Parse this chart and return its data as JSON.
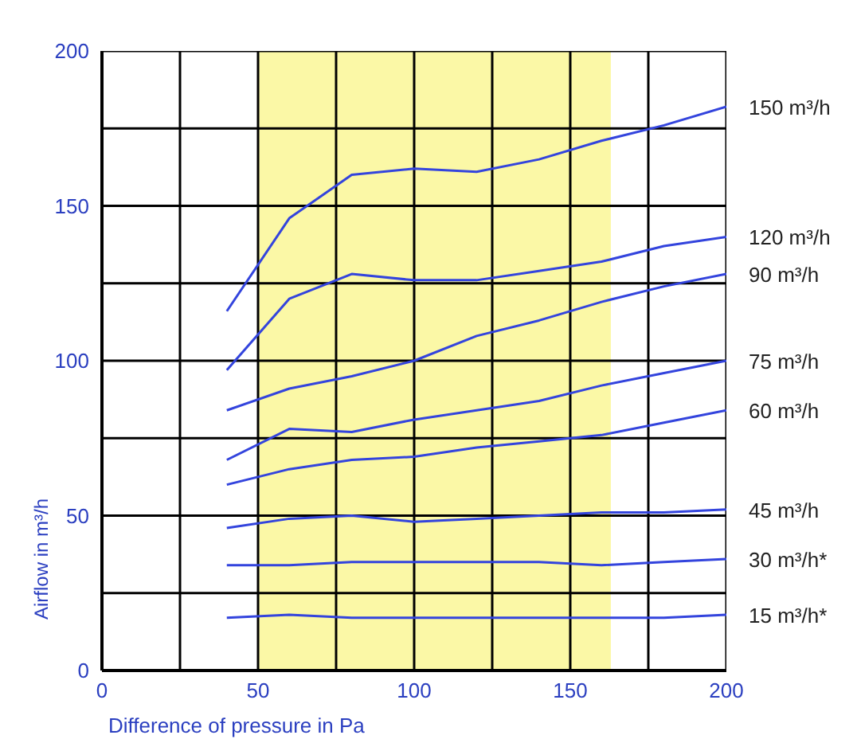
{
  "chart_data": {
    "type": "line",
    "xlabel": "Difference of pressure in Pa",
    "ylabel": "Airflow in m³/h",
    "x": [
      40,
      60,
      80,
      100,
      120,
      140,
      160,
      180,
      200
    ],
    "series": [
      {
        "name": "150 m³/h",
        "color": "#3344dd",
        "values": [
          116,
          146,
          160,
          162,
          161,
          165,
          171,
          176,
          182
        ]
      },
      {
        "name": "120 m³/h",
        "color": "#3344dd",
        "values": [
          97,
          120,
          128,
          126,
          126,
          129,
          132,
          137,
          140
        ]
      },
      {
        "name": "90 m³/h",
        "color": "#3344dd",
        "values": [
          84,
          91,
          95,
          100,
          108,
          113,
          119,
          124,
          128
        ]
      },
      {
        "name": "75 m³/h",
        "color": "#3344dd",
        "values": [
          68,
          78,
          77,
          81,
          84,
          87,
          92,
          96,
          100
        ]
      },
      {
        "name": "60 m³/h",
        "color": "#3344dd",
        "values": [
          60,
          65,
          68,
          69,
          72,
          74,
          76,
          80,
          84
        ]
      },
      {
        "name": "45 m³/h",
        "color": "#3344dd",
        "values": [
          46,
          49,
          50,
          48,
          49,
          50,
          51,
          51,
          52
        ]
      },
      {
        "name": "30 m³/h*",
        "color": "#3344dd",
        "values": [
          34,
          34,
          35,
          35,
          35,
          35,
          34,
          35,
          36
        ]
      },
      {
        "name": "15 m³/h*",
        "color": "#3344dd",
        "values": [
          17,
          18,
          17,
          17,
          17,
          17,
          17,
          17,
          18
        ]
      }
    ],
    "xlim": [
      0,
      200
    ],
    "xticks": [
      0,
      {
        "value": 25,
        "label": null
      },
      50,
      {
        "value": 75,
        "label": null
      },
      100,
      {
        "value": 125,
        "label": null
      },
      150,
      {
        "value": 175,
        "label": null
      },
      200
    ],
    "ylim": [
      0,
      200
    ],
    "yticks": [
      0,
      {
        "value": 25,
        "label": null
      },
      50,
      {
        "value": 75,
        "label": null
      },
      100,
      {
        "value": 125,
        "label": null
      },
      150,
      {
        "value": 175,
        "label": null
      },
      200
    ],
    "bands": [
      {
        "axis": "x",
        "from": 50,
        "to": 163,
        "color": "#fbf8a6"
      }
    ],
    "grid": true,
    "marker": "none",
    "line_style": "solid"
  }
}
